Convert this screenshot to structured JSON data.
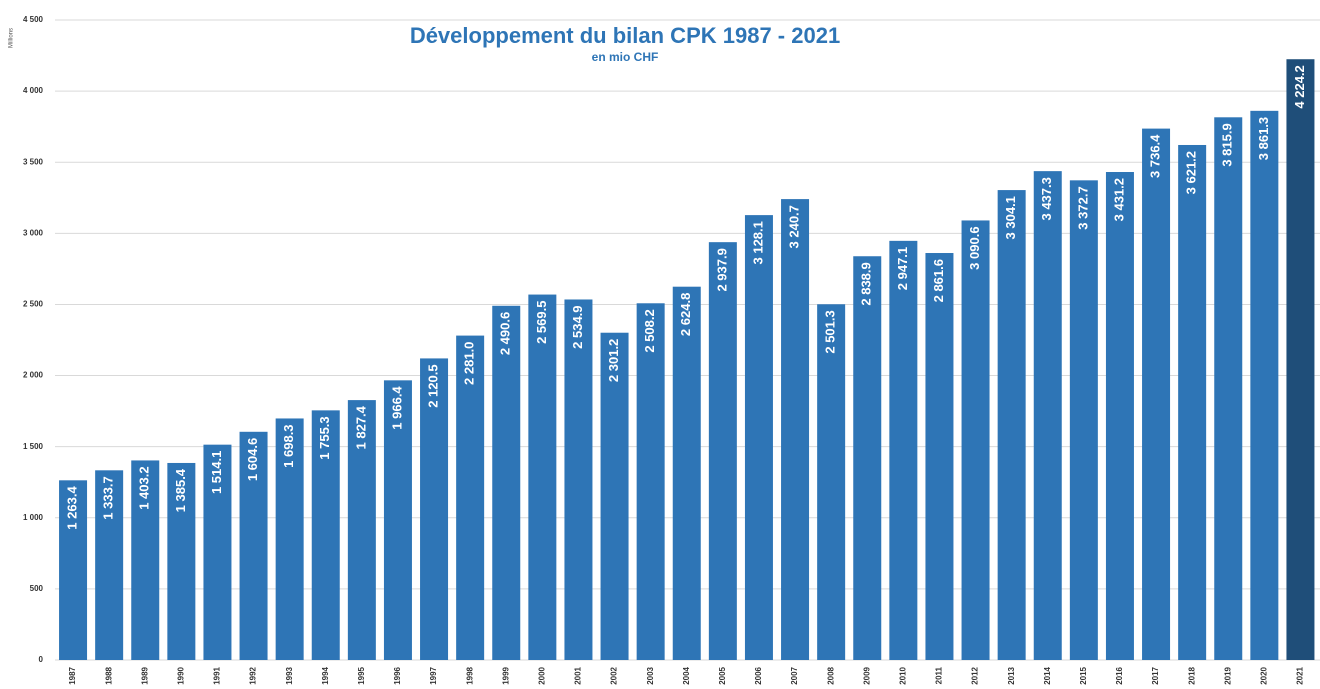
{
  "chart_data": {
    "type": "bar",
    "title": "Développement du bilan CPK 1987 - 2021",
    "subtitle": "en mio CHF",
    "y_label": "Millions",
    "categories": [
      "1987",
      "1988",
      "1989",
      "1990",
      "1991",
      "1992",
      "1993",
      "1994",
      "1995",
      "1996",
      "1997",
      "1998",
      "1999",
      "2000",
      "2001",
      "2002",
      "2003",
      "2004",
      "2005",
      "2006",
      "2007",
      "2008",
      "2009",
      "2010",
      "2011",
      "2012",
      "2013",
      "2014",
      "2015",
      "2016",
      "2017",
      "2018",
      "2019",
      "2020",
      "2021"
    ],
    "values": [
      1263.4,
      1333.7,
      1403.2,
      1385.4,
      1514.1,
      1604.6,
      1698.3,
      1755.3,
      1827.4,
      1966.4,
      2120.5,
      2281.0,
      2490.6,
      2569.5,
      2534.9,
      2301.2,
      2508.2,
      2624.8,
      2937.9,
      3128.1,
      3240.7,
      2501.3,
      2838.9,
      2947.1,
      2861.6,
      3090.6,
      3304.1,
      3437.3,
      3372.7,
      3431.2,
      3736.4,
      3621.2,
      3815.9,
      3861.3,
      4224.2
    ],
    "value_labels": [
      "1 263.4",
      "1 333.7",
      "1 403.2",
      "1 385.4",
      "1 514.1",
      "1 604.6",
      "1 698.3",
      "1 755.3",
      "1 827.4",
      "1 966.4",
      "2 120.5",
      "2 281.0",
      "2 490.6",
      "2 569.5",
      "2 534.9",
      "2 301.2",
      "2 508.2",
      "2 624.8",
      "2 937.9",
      "3 128.1",
      "3 240.7",
      "2 501.3",
      "2 838.9",
      "2 947.1",
      "2 861.6",
      "3 090.6",
      "3 304.1",
      "3 437.3",
      "3 372.7",
      "3 431.2",
      "3 736.4",
      "3 621.2",
      "3 815.9",
      "3 861.3",
      "4 224.2"
    ],
    "colors": [
      "#2e75b6",
      "#2e75b6",
      "#2e75b6",
      "#2e75b6",
      "#2e75b6",
      "#2e75b6",
      "#2e75b6",
      "#2e75b6",
      "#2e75b6",
      "#2e75b6",
      "#2e75b6",
      "#2e75b6",
      "#2e75b6",
      "#2e75b6",
      "#2e75b6",
      "#2e75b6",
      "#2e75b6",
      "#2e75b6",
      "#2e75b6",
      "#2e75b6",
      "#2e75b6",
      "#2e75b6",
      "#2e75b6",
      "#2e75b6",
      "#2e75b6",
      "#2e75b6",
      "#2e75b6",
      "#2e75b6",
      "#2e75b6",
      "#2e75b6",
      "#2e75b6",
      "#2e75b6",
      "#2e75b6",
      "#2e75b6",
      "#1f4e79"
    ],
    "ylim": [
      0,
      4500
    ],
    "yticks": [
      0,
      500,
      {
        "value": 1000,
        "label": "1 000"
      },
      {
        "value": 1500,
        "label": "1 500"
      },
      {
        "value": 2000,
        "label": "2 000"
      },
      {
        "value": 2500,
        "label": "2 500"
      },
      {
        "value": 3000,
        "label": "3 000"
      },
      {
        "value": 3500,
        "label": "3 500"
      },
      {
        "value": 4000,
        "label": "4 000"
      },
      {
        "value": 4500,
        "label": "4 500"
      }
    ],
    "grid": true
  }
}
